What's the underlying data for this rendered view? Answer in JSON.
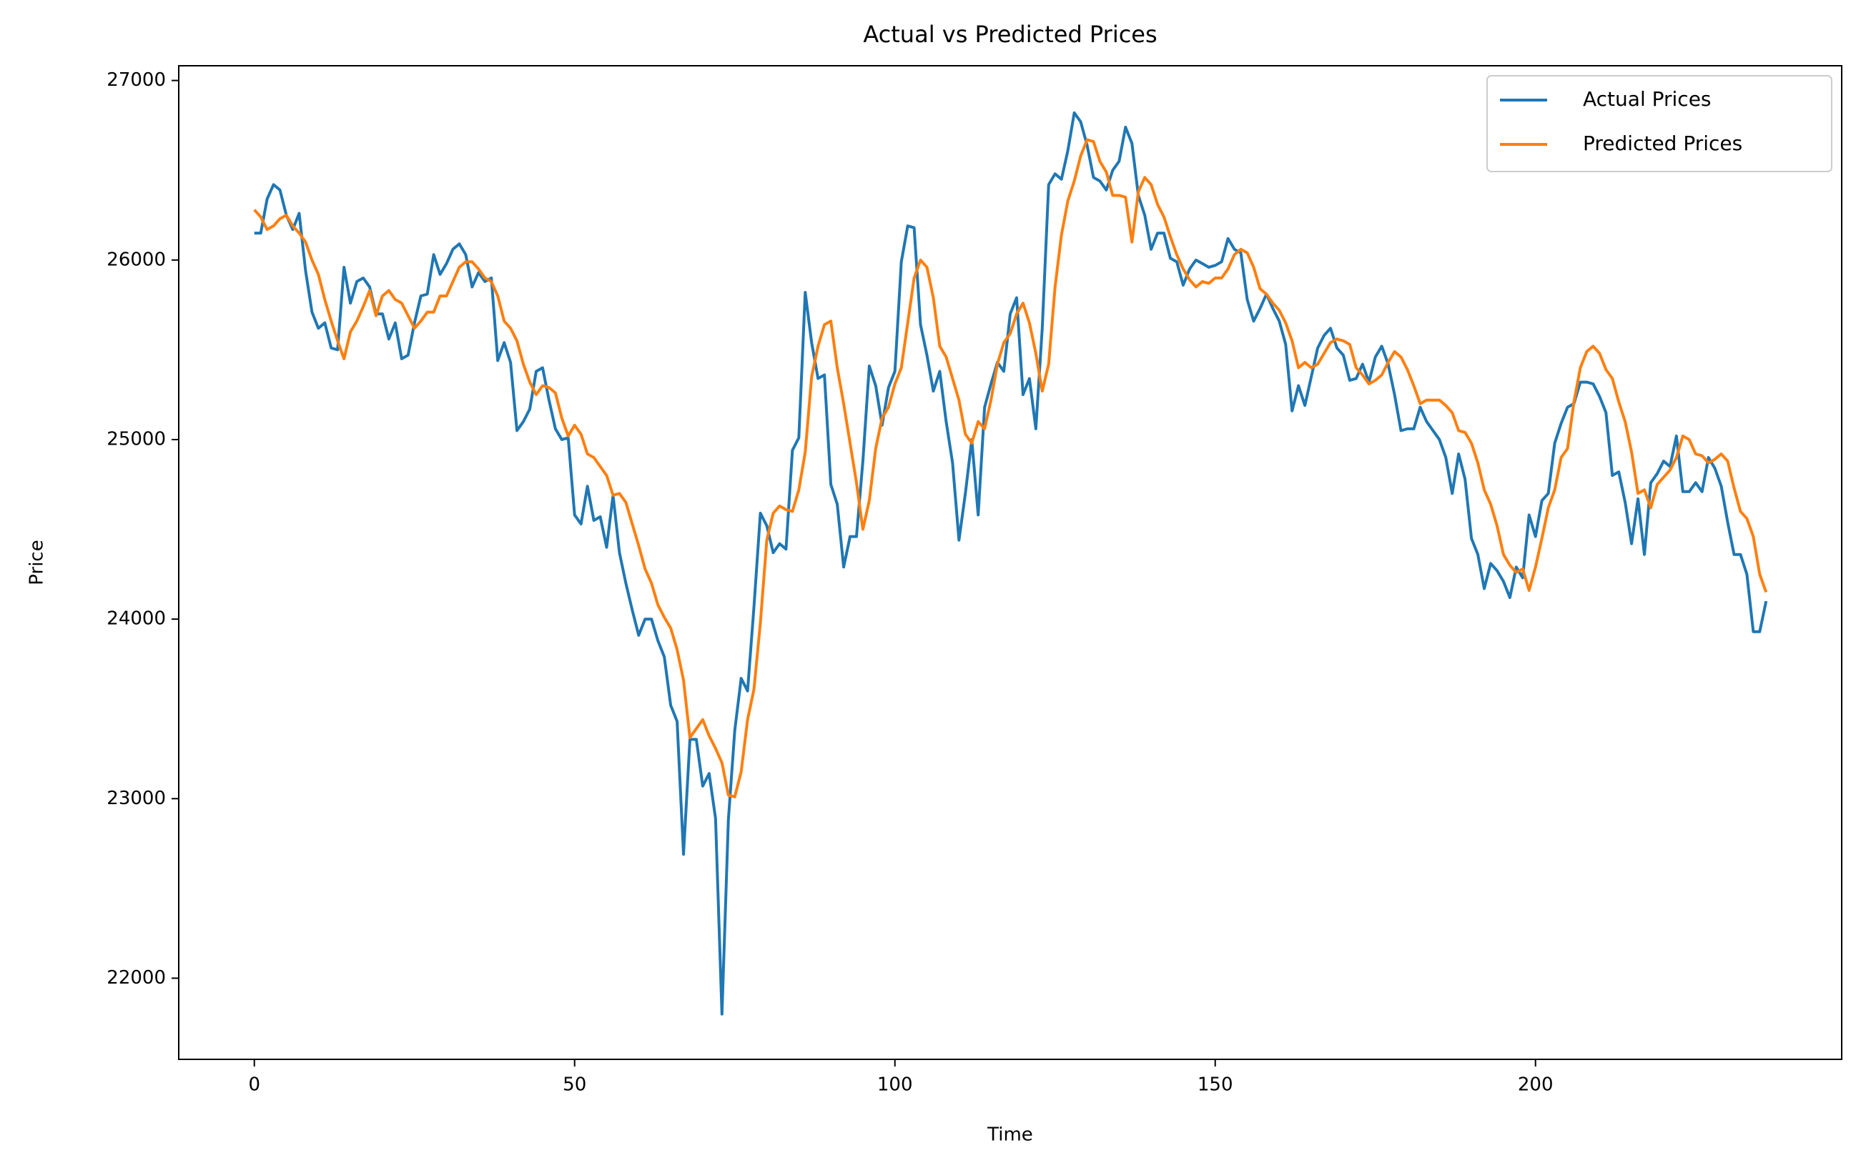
{
  "chart_data": {
    "type": "line",
    "title": "Actual vs Predicted Prices",
    "x_label": "Time",
    "y_label": "Price",
    "x": [
      0,
      1,
      2,
      3,
      4,
      5,
      6,
      7,
      8,
      9,
      10,
      11,
      12,
      13,
      14,
      15,
      16,
      17,
      18,
      19,
      20,
      21,
      22,
      23,
      24,
      25,
      26,
      27,
      28,
      29,
      30,
      31,
      32,
      33,
      34,
      35,
      36,
      37,
      38,
      39,
      40,
      41,
      42,
      43,
      44,
      45,
      46,
      47,
      48,
      49,
      50,
      51,
      52,
      53,
      54,
      55,
      56,
      57,
      58,
      59,
      60,
      61,
      62,
      63,
      64,
      65,
      66,
      67,
      68,
      69,
      70,
      71,
      72,
      73,
      74,
      75,
      76,
      77,
      78,
      79,
      80,
      81,
      82,
      83,
      84,
      85,
      86,
      87,
      88,
      89,
      90,
      91,
      92,
      93,
      94,
      95,
      96,
      97,
      98,
      99,
      100,
      101,
      102,
      103,
      104,
      105,
      106,
      107,
      108,
      109,
      110,
      111,
      112,
      113,
      114,
      115,
      116,
      117,
      118,
      119,
      120,
      121,
      122,
      123,
      124,
      125,
      126,
      127,
      128,
      129,
      130,
      131,
      132,
      133,
      134,
      135,
      136,
      137,
      138,
      139,
      140,
      141,
      142,
      143,
      144,
      145,
      146,
      147,
      148,
      149,
      150,
      151,
      152,
      153,
      154,
      155,
      156,
      157,
      158,
      159,
      160,
      161,
      162,
      163,
      164,
      165,
      166,
      167,
      168,
      169,
      170,
      171,
      172,
      173,
      174,
      175,
      176,
      177,
      178,
      179,
      180,
      181,
      182,
      183,
      184,
      185,
      186,
      187,
      188,
      189,
      190,
      191,
      192,
      193,
      194,
      195,
      196,
      197,
      198,
      199,
      200,
      201,
      202,
      203,
      204,
      205,
      206,
      207,
      208,
      209,
      210,
      211,
      212,
      213,
      214,
      215,
      216,
      217,
      218,
      219,
      220,
      221,
      222,
      223,
      224,
      225,
      226,
      227,
      228,
      229,
      230,
      231,
      232,
      233,
      234,
      235,
      236
    ],
    "series": [
      {
        "name": "Actual Prices",
        "color": "#1f77b4",
        "values": [
          26150,
          26150,
          26340,
          26420,
          26390,
          26250,
          26170,
          26260,
          25940,
          25710,
          25620,
          25650,
          25510,
          25500,
          25960,
          25760,
          25880,
          25900,
          25850,
          25700,
          25700,
          25560,
          25650,
          25450,
          25470,
          25650,
          25800,
          25810,
          26030,
          25920,
          25980,
          26060,
          26090,
          26030,
          25850,
          25930,
          25880,
          25900,
          25440,
          25540,
          25430,
          25050,
          25100,
          25170,
          25380,
          25400,
          25220,
          25060,
          25000,
          25010,
          24580,
          24530,
          24740,
          24550,
          24570,
          24400,
          24690,
          24370,
          24200,
          24050,
          23910,
          24000,
          24000,
          23880,
          23790,
          23520,
          23430,
          22690,
          23330,
          23330,
          23070,
          23140,
          22890,
          21800,
          22880,
          23380,
          23670,
          23600,
          24070,
          24590,
          24520,
          24370,
          24420,
          24390,
          24940,
          25010,
          25820,
          25540,
          25340,
          25360,
          24750,
          24640,
          24290,
          24460,
          24460,
          24880,
          25410,
          25300,
          25080,
          25290,
          25380,
          25990,
          26190,
          26180,
          25640,
          25470,
          25270,
          25380,
          25100,
          24870,
          24440,
          24700,
          25000,
          24580,
          25180,
          25310,
          25430,
          25380,
          25700,
          25790,
          25250,
          25340,
          25060,
          25620,
          26420,
          26480,
          26450,
          26610,
          26820,
          26770,
          26640,
          26460,
          26440,
          26390,
          26500,
          26550,
          26740,
          26650,
          26360,
          26250,
          26060,
          26150,
          26150,
          26010,
          25990,
          25860,
          25950,
          26000,
          25980,
          25960,
          25970,
          25990,
          26120,
          26060,
          26040,
          25780,
          25660,
          25730,
          25810,
          25730,
          25660,
          25530,
          25160,
          25300,
          25190,
          25350,
          25510,
          25580,
          25620,
          25510,
          25470,
          25330,
          25340,
          25420,
          25320,
          25460,
          25520,
          25420,
          25250,
          25050,
          25060,
          25060,
          25180,
          25100,
          25050,
          25000,
          24900,
          24700,
          24920,
          24780,
          24450,
          24360,
          24170,
          24310,
          24270,
          24210,
          24120,
          24290,
          24230,
          24580,
          24460,
          24660,
          24700,
          24980,
          25090,
          25180,
          25200,
          25320,
          25320,
          25310,
          25240,
          25150,
          24800,
          24820,
          24650,
          24420,
          24670,
          24360,
          24760,
          24810,
          24880,
          24850,
          25020,
          24710,
          24710,
          24760,
          24710,
          24900,
          24840,
          24740,
          24540,
          24360,
          24360,
          24250,
          23930,
          23930,
          24100
        ]
      },
      {
        "name": "Predicted Prices",
        "color": "#ff7f0e",
        "values": [
          26280,
          26240,
          26170,
          26190,
          26230,
          26250,
          26190,
          26150,
          26100,
          26000,
          25920,
          25780,
          25660,
          25550,
          25450,
          25600,
          25660,
          25740,
          25830,
          25690,
          25800,
          25830,
          25780,
          25760,
          25690,
          25620,
          25660,
          25710,
          25710,
          25800,
          25800,
          25880,
          25960,
          25990,
          25990,
          25950,
          25900,
          25880,
          25800,
          25660,
          25620,
          25550,
          25420,
          25320,
          25250,
          25300,
          25290,
          25260,
          25120,
          25020,
          25080,
          25030,
          24920,
          24900,
          24850,
          24800,
          24690,
          24700,
          24650,
          24530,
          24410,
          24280,
          24200,
          24080,
          24010,
          23950,
          23830,
          23660,
          23340,
          23390,
          23440,
          23350,
          23280,
          23200,
          23020,
          23010,
          23150,
          23440,
          23610,
          23980,
          24440,
          24590,
          24630,
          24610,
          24600,
          24720,
          24930,
          25350,
          25520,
          25640,
          25660,
          25400,
          25200,
          24980,
          24760,
          24500,
          24660,
          24950,
          25120,
          25180,
          25310,
          25400,
          25650,
          25900,
          26000,
          25960,
          25790,
          25520,
          25460,
          25340,
          25220,
          25030,
          24980,
          25100,
          25060,
          25220,
          25420,
          25540,
          25590,
          25700,
          25760,
          25650,
          25480,
          25270,
          25420,
          25850,
          26140,
          26330,
          26440,
          26580,
          26670,
          26660,
          26550,
          26490,
          26360,
          26360,
          26350,
          26100,
          26380,
          26460,
          26420,
          26310,
          26240,
          26130,
          26030,
          25950,
          25890,
          25850,
          25880,
          25870,
          25900,
          25900,
          25950,
          26030,
          26060,
          26040,
          25960,
          25840,
          25810,
          25760,
          25720,
          25650,
          25550,
          25400,
          25430,
          25400,
          25420,
          25480,
          25540,
          25560,
          25550,
          25530,
          25400,
          25360,
          25310,
          25330,
          25360,
          25430,
          25490,
          25460,
          25390,
          25300,
          25200,
          25220,
          25220,
          25220,
          25190,
          25150,
          25050,
          25040,
          24980,
          24870,
          24720,
          24640,
          24520,
          24360,
          24300,
          24260,
          24280,
          24160,
          24290,
          24450,
          24620,
          24720,
          24900,
          24950,
          25210,
          25400,
          25490,
          25520,
          25480,
          25390,
          25340,
          25210,
          25100,
          24930,
          24700,
          24720,
          24620,
          24750,
          24790,
          24830,
          24900,
          25020,
          25000,
          24920,
          24910,
          24870,
          24890,
          24920,
          24880,
          24730,
          24600,
          24560,
          24460,
          24250,
          24150
        ]
      }
    ],
    "xlim": [
      -11.8,
      247.8
    ],
    "xticks": [
      0,
      50,
      100,
      150,
      200
    ],
    "ylim": [
      21548,
      27082
    ],
    "yticks": [
      22000,
      23000,
      24000,
      25000,
      26000,
      27000
    ],
    "grid": false,
    "legend": "upper right"
  }
}
